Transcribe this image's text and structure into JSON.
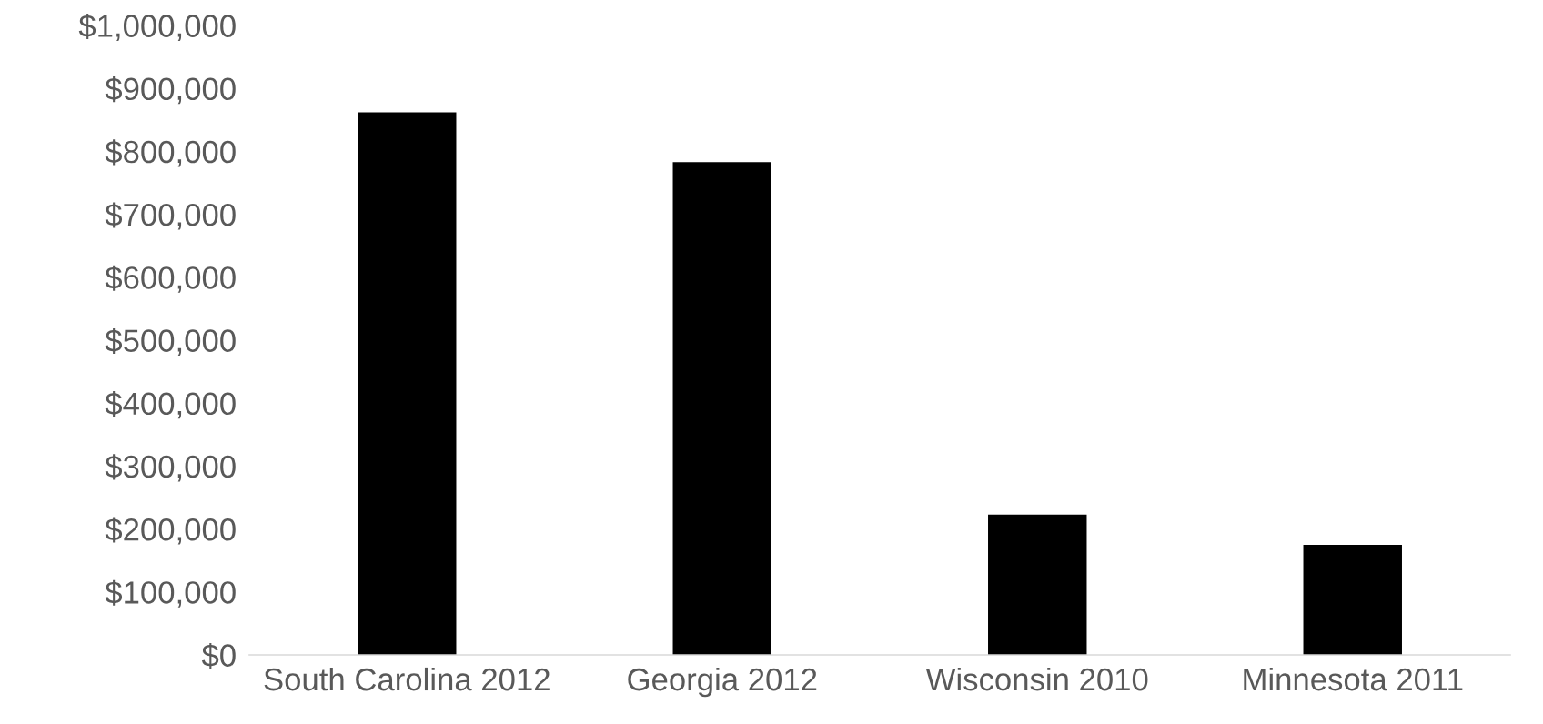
{
  "chart_data": {
    "type": "bar",
    "categories": [
      "South Carolina 2012",
      "Georgia 2012",
      "Wisconsin 2010",
      "Minnesota 2011"
    ],
    "values": [
      862000,
      783000,
      223000,
      175000
    ],
    "color": "#000000",
    "ylim": [
      0,
      1000000
    ],
    "yticks": [
      {
        "value": 0,
        "label": "$0"
      },
      {
        "value": 100000,
        "label": "$100,000"
      },
      {
        "value": 200000,
        "label": "$200,000"
      },
      {
        "value": 300000,
        "label": "$300,000"
      },
      {
        "value": 400000,
        "label": "$400,000"
      },
      {
        "value": 500000,
        "label": "$500,000"
      },
      {
        "value": 600000,
        "label": "$600,000"
      },
      {
        "value": 700000,
        "label": "$700,000"
      },
      {
        "value": 800000,
        "label": "$800,000"
      },
      {
        "value": 900000,
        "label": "$900,000"
      },
      {
        "value": 1000000,
        "label": "$1,000,000"
      }
    ],
    "grid": false,
    "legend": false
  }
}
